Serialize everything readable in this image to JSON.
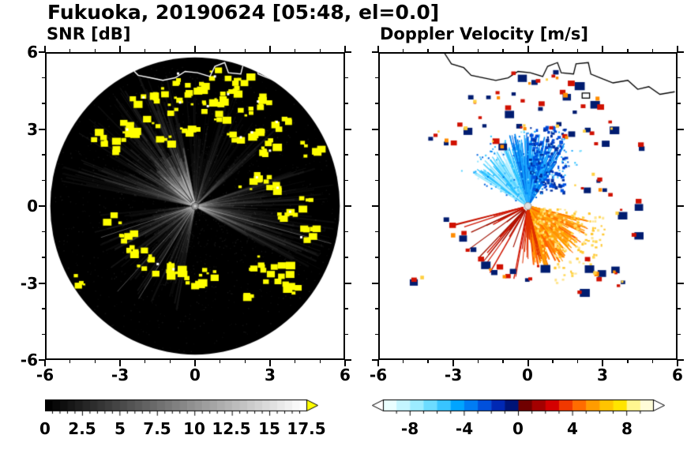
{
  "figure": {
    "title": "Fukuoka, 20190624 [05:48, el=0.0]"
  },
  "axes": {
    "xlim": [
      -6,
      6
    ],
    "ylim": [
      -6,
      6
    ],
    "xtick_labels": [
      "-6",
      "-3",
      "0",
      "3",
      "6"
    ],
    "ytick_labels": [
      "6",
      "3",
      "0",
      "-3",
      "-6"
    ],
    "major_tick_values": [
      -6,
      -3,
      0,
      3,
      6
    ],
    "minor_tick_step": 1
  },
  "panels": [
    {
      "title": "SNR [dB]",
      "colorbar": {
        "min": 0,
        "max": 17.5,
        "segments": 35,
        "minor_tick_step": 0.5,
        "scheme": "grayscale-black-to-white",
        "tick_values": [
          0,
          2.5,
          5,
          7.5,
          10,
          12.5,
          15,
          17.5
        ],
        "tick_labels": [
          "0",
          "2.5",
          "5",
          "7.5",
          "10",
          "12.5",
          "15",
          "17.5"
        ],
        "over_arrow_color": "#ffff00"
      }
    },
    {
      "title": "Doppler Velocity [m/s]",
      "colorbar": {
        "min": -10,
        "max": 10,
        "minor_tick_step": 1,
        "tick_values": [
          -8,
          -4,
          0,
          4,
          8
        ],
        "tick_labels": [
          "-8",
          "-4",
          "0",
          "4",
          "8"
        ],
        "colors": [
          "#eaffff",
          "#c4f6ff",
          "#9cecff",
          "#6cdcff",
          "#38c4ff",
          "#00a4ff",
          "#007cf4",
          "#0050dc",
          "#0028b4",
          "#001478",
          "#700000",
          "#a40000",
          "#d40000",
          "#f03800",
          "#ff6c00",
          "#ff9c00",
          "#ffc400",
          "#ffe400",
          "#fff690",
          "#fffcd8"
        ],
        "under_arrow_color": "#ffffff",
        "over_arrow_color": "#ffffff"
      }
    }
  ],
  "chart_data": [
    {
      "type": "heatmap",
      "title": "SNR [dB]",
      "units": "dB",
      "xlim": [
        -6,
        6
      ],
      "ylim": [
        -6,
        6
      ],
      "value_range": [
        0,
        17.5
      ],
      "colorbar_ticks": [
        0,
        2.5,
        5,
        7.5,
        10,
        12.5,
        15,
        17.5
      ],
      "disk_radius": 5.85,
      "description": "PPI radar scan at Fukuoka: black low-SNR disk of radius ~5.85 centered on the radar at the origin, faint gray radial beams (brightest fan toward the north-northwest near the radar), yellow high-SNR echo clusters concentrated in the northern sector and along an arc southwest of the radar, white coastline traced across the top of the disk",
      "echoes": [
        [
          -3.9,
          2.8
        ],
        [
          -3.3,
          2.5
        ],
        [
          -2.7,
          3.2
        ],
        [
          -2.3,
          4.2
        ],
        [
          -1.9,
          3.4
        ],
        [
          -1.5,
          4.5
        ],
        [
          -1.3,
          2.6
        ],
        [
          -0.9,
          3.8
        ],
        [
          -0.5,
          4.3
        ],
        [
          -0.3,
          3.1
        ],
        [
          0.2,
          4.8
        ],
        [
          0.6,
          4.0
        ],
        [
          1.0,
          3.3
        ],
        [
          1.3,
          4.4
        ],
        [
          1.6,
          2.8
        ],
        [
          2.0,
          3.8
        ],
        [
          2.3,
          3.0
        ],
        [
          2.6,
          4.2
        ],
        [
          1.8,
          5.0
        ],
        [
          0.9,
          5.2
        ],
        [
          -0.6,
          5.1
        ],
        [
          2.9,
          2.4
        ],
        [
          3.3,
          3.3
        ],
        [
          2.1,
          0.9
        ],
        [
          2.6,
          1.1
        ],
        [
          3.1,
          0.7
        ],
        [
          3.6,
          -0.3
        ],
        [
          4.3,
          0.2
        ],
        [
          4.4,
          -1.0
        ],
        [
          -2.9,
          -1.1
        ],
        [
          -2.5,
          -1.7
        ],
        [
          -2.0,
          -2.1
        ],
        [
          -1.4,
          -2.4
        ],
        [
          -0.8,
          -2.6
        ],
        [
          -0.2,
          -2.8
        ],
        [
          0.5,
          -2.5
        ],
        [
          -3.4,
          -0.5
        ],
        [
          -4.6,
          -2.9
        ],
        [
          2.3,
          -2.2
        ],
        [
          2.9,
          -2.7
        ],
        [
          2.1,
          -3.3
        ],
        [
          3.4,
          -2.4
        ],
        [
          3.8,
          -3.1
        ],
        [
          4.6,
          2.3
        ]
      ],
      "coastline": [
        [
          -3.4,
          6.05
        ],
        [
          -3.1,
          5.6
        ],
        [
          -2.6,
          5.45
        ],
        [
          -2.3,
          5.15
        ],
        [
          -1.8,
          5.05
        ],
        [
          -1.3,
          4.95
        ],
        [
          -0.8,
          5.05
        ],
        [
          -0.4,
          5.3
        ],
        [
          0.1,
          5.25
        ],
        [
          0.6,
          5.1
        ],
        [
          0.8,
          5.5
        ],
        [
          1.2,
          5.65
        ],
        [
          1.35,
          5.25
        ],
        [
          1.85,
          5.2
        ],
        [
          1.95,
          5.6
        ],
        [
          2.45,
          5.65
        ],
        [
          2.55,
          5.2
        ],
        [
          3.05,
          5.0
        ],
        [
          3.45,
          4.85
        ],
        [
          4.05,
          4.95
        ],
        [
          4.45,
          4.6
        ],
        [
          4.9,
          4.7
        ],
        [
          5.35,
          4.4
        ],
        [
          5.95,
          4.5
        ]
      ]
    },
    {
      "type": "heatmap",
      "title": "Doppler Velocity [m/s]",
      "units": "m/s",
      "xlim": [
        -6,
        6
      ],
      "ylim": [
        -6,
        6
      ],
      "value_range": [
        -10,
        10
      ],
      "colorbar_ticks": [
        -8,
        -4,
        0,
        4,
        8
      ],
      "negative_fan": {
        "direction": "north of radar",
        "angles_deg": [
          35,
          155
        ],
        "max_range": 3.0,
        "meaning": "toward radar, cyan-blue"
      },
      "positive_fan": {
        "direction": "south-southeast of radar",
        "angles_deg": [
          -95,
          -10
        ],
        "max_range": 3.2,
        "meaning": "away from radar, orange-yellow"
      },
      "description": "Doppler velocity PPI on white background: cyan-blue (negative) fan north of the radar, orange-yellow (positive) fan south-southeast of the radar, thin dark-red streaks toward the southwest, scattered echo blobs rendered navy with red cores co-located with the SNR echoes, black coastline across the top",
      "echoes_shared_with_snr": true
    }
  ]
}
